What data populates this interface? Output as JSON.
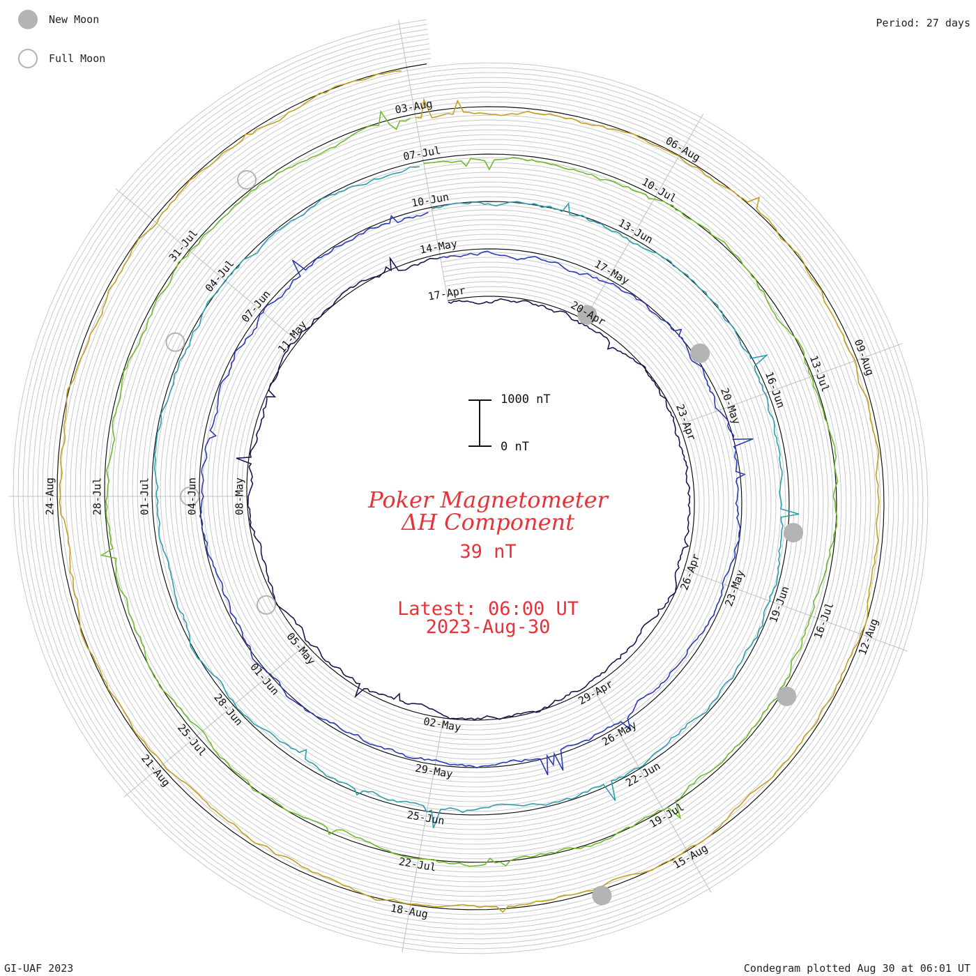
{
  "legend": {
    "new_moon_label": "New Moon",
    "full_moon_label": "Full Moon",
    "new_moon_color": "#b3b3b3"
  },
  "header": {
    "period": "Period: 27 days"
  },
  "footer": {
    "credit": "GI-UAF 2023",
    "plotted": "Condegram plotted Aug 30 at 06:01 UT"
  },
  "center": {
    "title_line1": "Poker Magnetometer",
    "title_line2": "ΔH Component",
    "value": "39 nT",
    "latest": "Latest: 06:00 UT",
    "date": "2023-Aug-30",
    "text_color": "#e8323a"
  },
  "scale_bar": {
    "top_label": "1000 nT",
    "bottom_label": "0 nT"
  },
  "chart_data": {
    "type": "line",
    "layout": "spiral condegram",
    "period_days": 27,
    "scale_nT": [
      0,
      1000
    ],
    "current_value_nT": 39,
    "rotations": [
      {
        "name": "",
        "color": "#161650",
        "dates": [
          "17-Apr",
          "20-Apr",
          "23-Apr",
          "26-Apr",
          "29-Apr",
          "02-May",
          "05-May",
          "08-May",
          "11-May"
        ]
      },
      {
        "name": "",
        "color": "#2a3ab8",
        "dates": [
          "14-May",
          "17-May",
          "20-May",
          "23-May",
          "26-May",
          "29-May",
          "01-Jun",
          "04-Jun",
          "07-Jun"
        ]
      },
      {
        "name": "",
        "color": "#2a9fb0",
        "dates": [
          "10-Jun",
          "13-Jun",
          "16-Jun",
          "19-Jun",
          "22-Jun",
          "25-Jun",
          "28-Jun",
          "01-Jul",
          "04-Jul"
        ]
      },
      {
        "name": "",
        "color": "#6dbb2a",
        "dates": [
          "07-Jul",
          "10-Jul",
          "13-Jul",
          "16-Jul",
          "19-Jul",
          "22-Jul",
          "25-Jul",
          "28-Jul",
          "31-Jul"
        ]
      },
      {
        "name": "",
        "color": "#c5a020",
        "dates": [
          "03-Aug",
          "06-Aug",
          "09-Aug",
          "12-Aug",
          "15-Aug",
          "18-Aug",
          "21-Aug",
          "24-Aug"
        ]
      }
    ],
    "new_moons": [
      "20-Apr",
      "19-May",
      "18-Jun",
      "17-Jul",
      "16-Aug"
    ],
    "full_moons": [
      "06-May",
      "04-Jun",
      "03-Jul",
      "01-Aug"
    ]
  }
}
